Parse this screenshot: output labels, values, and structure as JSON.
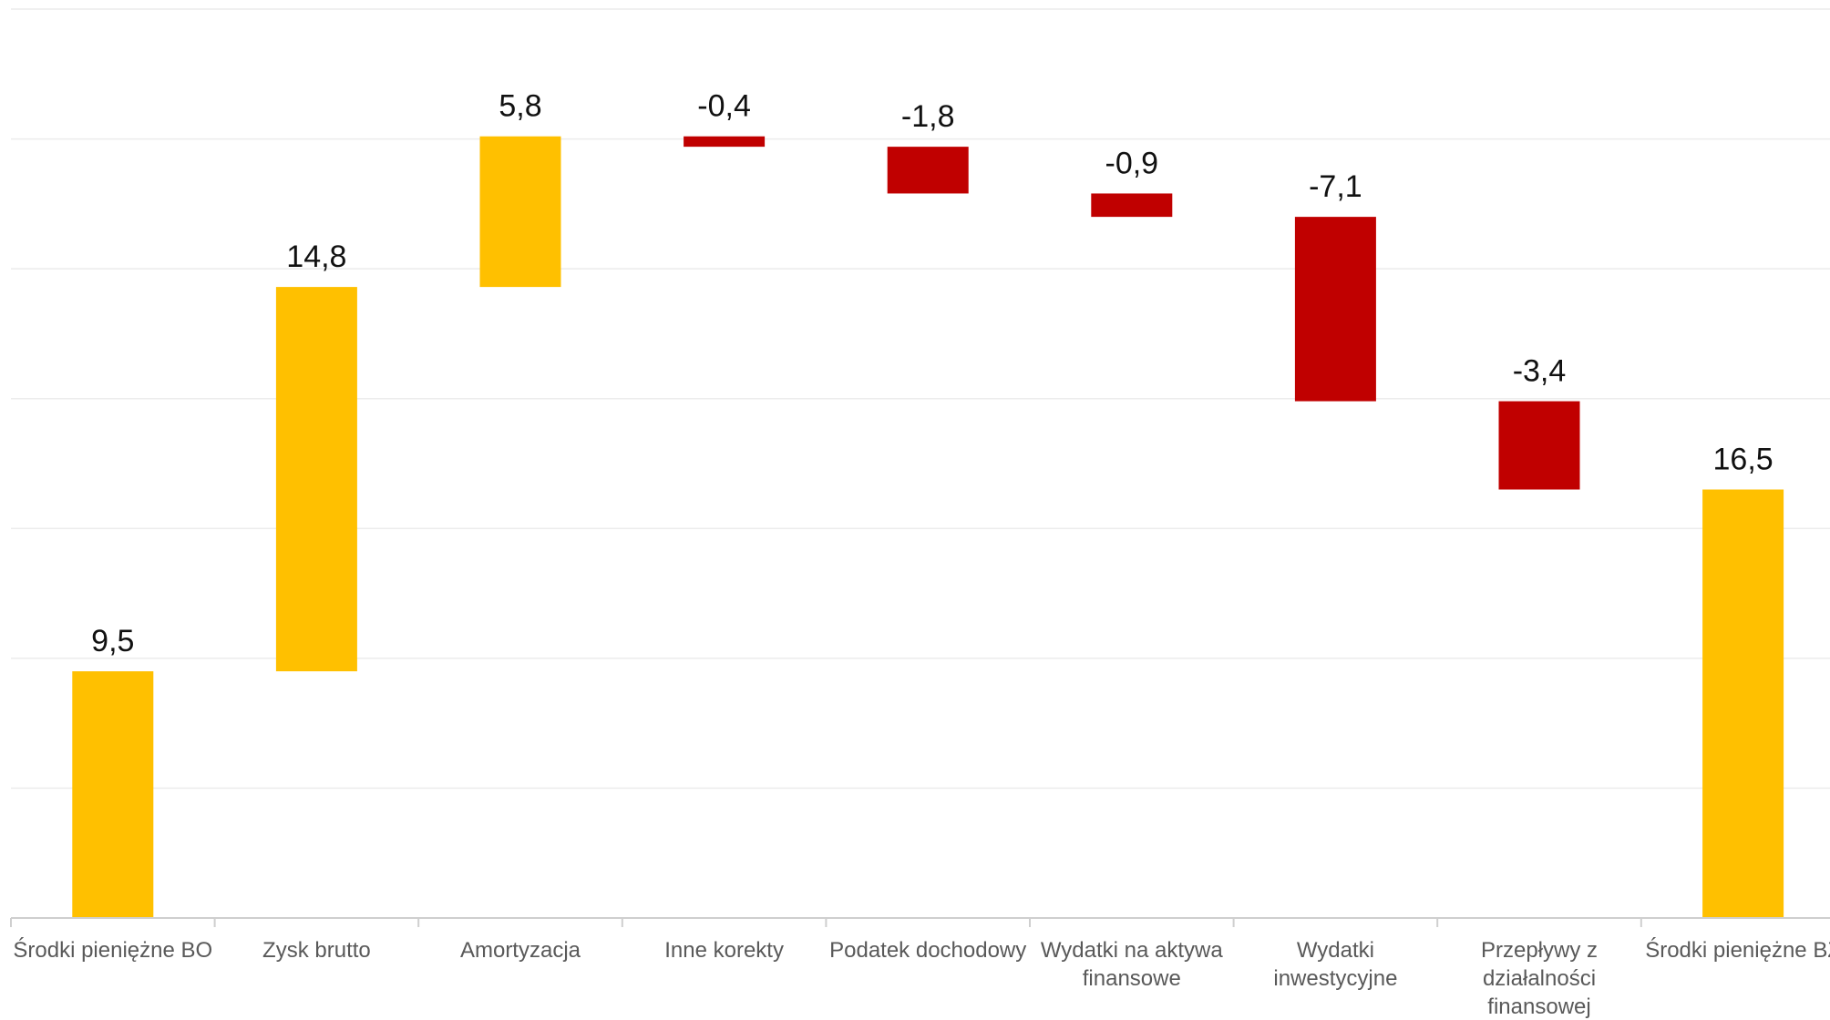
{
  "chart_data": {
    "type": "bar",
    "subtype": "waterfall",
    "categories": [
      [
        "Środki pieniężne BO"
      ],
      [
        "Zysk brutto"
      ],
      [
        "Amortyzacja"
      ],
      [
        "Inne korekty"
      ],
      [
        "Podatek dochodowy"
      ],
      [
        "Wydatki na aktywa",
        "finansowe"
      ],
      [
        "Wydatki",
        "inwestycyjne"
      ],
      [
        "Przepływy z",
        "działalności",
        "finansowej"
      ],
      [
        "Środki pieniężne BZ"
      ]
    ],
    "values": [
      9.5,
      14.8,
      5.8,
      -0.4,
      -1.8,
      -0.9,
      -7.1,
      -3.4,
      16.5
    ],
    "value_labels": [
      "9,5",
      "14,8",
      "5,8",
      "-0,4",
      "-1,8",
      "-0,9",
      "-7,1",
      "-3,4",
      "16,5"
    ],
    "is_total": [
      true,
      false,
      false,
      false,
      false,
      false,
      false,
      false,
      true
    ],
    "ylim": [
      0,
      35
    ],
    "grid_step": 5,
    "grid": true,
    "legend": "none",
    "title": "",
    "xlabel": "",
    "ylabel": "",
    "colors": {
      "total": "#FFC000",
      "increase": "#FFC000",
      "decrease": "#C00000",
      "grid": "#ECECEC",
      "axis": "#CFCFCF"
    }
  }
}
